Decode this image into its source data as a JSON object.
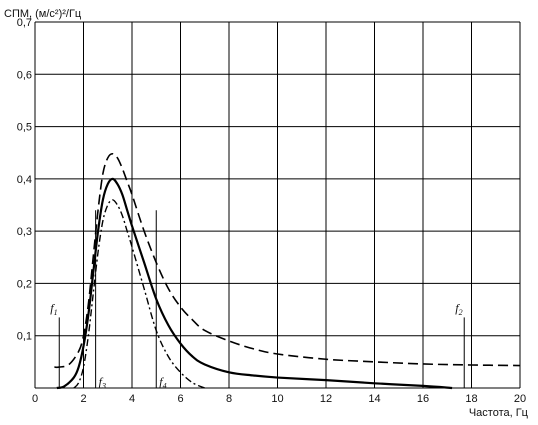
{
  "chart_data": {
    "type": "line",
    "ylabel": "СПМ, (м/с²)²/Гц",
    "xlabel": "Частота, Гц",
    "xlim": [
      0,
      20
    ],
    "ylim": [
      0,
      0.7
    ],
    "x_ticks": [
      "0",
      "2",
      "4",
      "6",
      "8",
      "10",
      "12",
      "14",
      "16",
      "18",
      "20"
    ],
    "y_ticks": [
      "0,1",
      "0,2",
      "0,3",
      "0,4",
      "0,5",
      "0,6",
      "0,7"
    ],
    "grid": true,
    "legend": false,
    "series": [
      {
        "style": "dashed",
        "x": [
          0.8,
          1.0,
          1.4,
          1.8,
          2.0,
          2.2,
          2.4,
          2.6,
          2.8,
          3.0,
          3.2,
          3.4,
          3.6,
          3.8,
          4.0,
          4.5,
          5.0,
          5.5,
          6.0,
          6.5,
          7.0,
          8.0,
          9.0,
          10.0,
          12.0,
          14.0,
          16.0,
          18.0,
          20.0
        ],
        "y": [
          0.04,
          0.04,
          0.045,
          0.07,
          0.1,
          0.16,
          0.25,
          0.34,
          0.41,
          0.44,
          0.448,
          0.44,
          0.42,
          0.395,
          0.37,
          0.3,
          0.24,
          0.19,
          0.155,
          0.13,
          0.11,
          0.09,
          0.075,
          0.065,
          0.055,
          0.05,
          0.046,
          0.044,
          0.043
        ]
      },
      {
        "style": "solid",
        "x": [
          0.9,
          1.2,
          1.6,
          1.8,
          2.0,
          2.2,
          2.4,
          2.6,
          2.8,
          3.0,
          3.2,
          3.4,
          3.6,
          3.8,
          4.0,
          4.5,
          5.0,
          5.5,
          6.0,
          6.5,
          7.0,
          8.0,
          9.0,
          10.0,
          12.0,
          14.0,
          16.0,
          17.2
        ],
        "y": [
          0.0,
          0.003,
          0.02,
          0.04,
          0.08,
          0.14,
          0.22,
          0.3,
          0.36,
          0.39,
          0.4,
          0.39,
          0.37,
          0.34,
          0.31,
          0.24,
          0.17,
          0.12,
          0.085,
          0.06,
          0.045,
          0.03,
          0.024,
          0.02,
          0.015,
          0.009,
          0.004,
          0.0
        ]
      },
      {
        "style": "dash-dot",
        "x": [
          1.6,
          1.8,
          2.0,
          2.2,
          2.4,
          2.6,
          2.8,
          3.0,
          3.2,
          3.4,
          3.6,
          3.8,
          4.0,
          4.5,
          5.0,
          5.5,
          6.0,
          6.5,
          7.0
        ],
        "y": [
          0.0,
          0.01,
          0.04,
          0.1,
          0.18,
          0.26,
          0.32,
          0.35,
          0.36,
          0.35,
          0.33,
          0.3,
          0.27,
          0.19,
          0.11,
          0.06,
          0.03,
          0.01,
          0.0
        ]
      }
    ],
    "markers": [
      {
        "label": "f",
        "sub": "1",
        "x": 1.0,
        "y_top": 0.135,
        "label_y": 0.145,
        "label_side": "left"
      },
      {
        "label": "f",
        "sub": "2",
        "x": 17.7,
        "y_top": 0.135,
        "label_y": 0.145,
        "label_side": "left"
      },
      {
        "label": "f",
        "sub": "3",
        "x": 2.5,
        "y_top": 0.34,
        "label_y": 0.005,
        "label_side": "right"
      },
      {
        "label": "f",
        "sub": "4",
        "x": 5.0,
        "y_top": 0.34,
        "label_y": 0.005,
        "label_side": "right"
      }
    ]
  }
}
